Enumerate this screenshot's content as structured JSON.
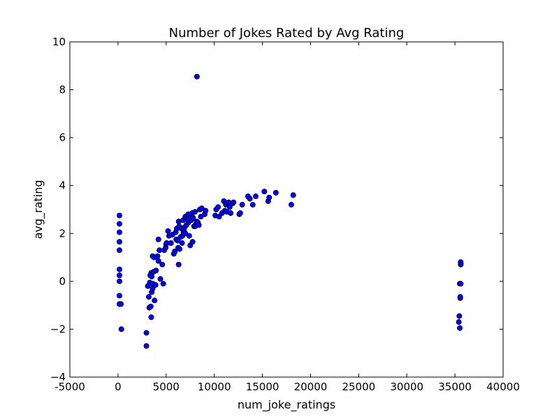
{
  "chart_data": {
    "type": "scatter",
    "title": "Number of Jokes Rated by Avg Rating",
    "xlabel": "num_joke_ratings",
    "ylabel": "avg_rating",
    "xlim": [
      -5000,
      40000
    ],
    "ylim": [
      -4,
      10
    ],
    "xticks": [
      -5000,
      0,
      5000,
      10000,
      15000,
      20000,
      25000,
      30000,
      35000,
      40000
    ],
    "yticks": [
      -4,
      -2,
      0,
      2,
      4,
      6,
      8,
      10
    ],
    "grid": false,
    "legend": "none",
    "colors": {
      "marker_fill": "#0000ff",
      "marker_edge": "#000000",
      "axes": "#000000",
      "background": "#ffffff"
    },
    "series": [
      {
        "x": [
          150,
          150,
          150,
          150,
          150,
          150,
          150,
          150,
          150,
          150,
          300,
          350,
          2950,
          2950,
          3100,
          3200,
          3250,
          3300,
          3350,
          3400,
          3450,
          3450,
          3500,
          3500,
          3600,
          3600,
          3600,
          3700,
          3750,
          3800,
          3900,
          3950,
          4100,
          4200,
          4200,
          4300,
          4400,
          4600,
          4700,
          4800,
          4950,
          5000,
          5050,
          5200,
          5300,
          5500,
          5650,
          5800,
          5900,
          6000,
          6050,
          6100,
          6200,
          6250,
          6300,
          6300,
          6350,
          6400,
          6500,
          6600,
          6650,
          6700,
          6750,
          6800,
          6850,
          6900,
          7000,
          7000,
          7100,
          7200,
          7300,
          7300,
          7400,
          7500,
          7600,
          7650,
          7700,
          7750,
          7800,
          7900,
          8000,
          8000,
          8100,
          8200,
          8300,
          8400,
          8500,
          8600,
          8700,
          9000,
          9100,
          10100,
          10200,
          10400,
          10500,
          10800,
          11000,
          11100,
          11200,
          11300,
          11400,
          11500,
          11600,
          11700,
          11900,
          12000,
          12600,
          12700,
          12900,
          13500,
          13700,
          14000,
          14300,
          15200,
          15600,
          15700,
          16400,
          18000,
          18200,
          8200,
          35400,
          35450,
          35500,
          35500,
          35550,
          35550,
          35600,
          35600,
          35600,
          35600
        ],
        "y": [
          2.75,
          2.4,
          2.05,
          1.65,
          1.3,
          0.5,
          0.25,
          0.0,
          -0.6,
          -0.95,
          -0.95,
          -2.0,
          -2.7,
          -2.15,
          -0.2,
          -0.65,
          -1.1,
          -0.05,
          0.25,
          -1.05,
          0.35,
          -1.5,
          -0.45,
          0.2,
          1.05,
          -0.3,
          -0.1,
          0.4,
          1.0,
          -0.8,
          -0.15,
          0.45,
          1.05,
          1.75,
          0.85,
          1.3,
          0.1,
          0.7,
          -0.1,
          1.3,
          1.4,
          1.55,
          1.6,
          2.1,
          1.9,
          1.6,
          1.95,
          1.15,
          1.25,
          2.05,
          1.75,
          2.2,
          1.7,
          1.4,
          2.5,
          0.7,
          2.3,
          1.35,
          1.85,
          2.2,
          1.6,
          1.9,
          2.55,
          2.05,
          2.1,
          2.25,
          2.7,
          2.0,
          2.35,
          2.6,
          2.8,
          2.45,
          1.9,
          1.5,
          2.55,
          2.75,
          2.85,
          1.65,
          2.65,
          2.3,
          2.3,
          2.9,
          2.4,
          2.5,
          2.45,
          2.35,
          3.0,
          2.7,
          3.05,
          2.8,
          2.95,
          2.75,
          3.0,
          3.1,
          2.7,
          2.85,
          3.35,
          2.95,
          3.2,
          2.9,
          3.25,
          3.3,
          3.1,
          2.85,
          3.25,
          3.3,
          2.8,
          2.85,
          3.2,
          3.55,
          3.45,
          3.2,
          3.55,
          3.75,
          3.35,
          3.5,
          3.7,
          3.2,
          3.6,
          8.55,
          -1.7,
          -1.45,
          -1.95,
          -0.1,
          -0.7,
          -0.65,
          0.7,
          0.8,
          0.75,
          -0.1
        ]
      }
    ]
  }
}
